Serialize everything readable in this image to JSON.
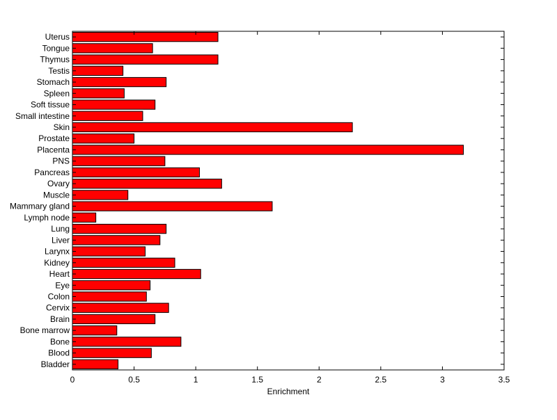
{
  "chart_data": {
    "type": "bar",
    "orientation": "horizontal",
    "categories": [
      "Bladder",
      "Blood",
      "Bone",
      "Bone marrow",
      "Brain",
      "Cervix",
      "Colon",
      "Eye",
      "Heart",
      "Kidney",
      "Larynx",
      "Liver",
      "Lung",
      "Lymph node",
      "Mammary gland",
      "Muscle",
      "Ovary",
      "Pancreas",
      "PNS",
      "Placenta",
      "Prostate",
      "Skin",
      "Small intestine",
      "Soft tissue",
      "Spleen",
      "Stomach",
      "Testis",
      "Thymus",
      "Tongue",
      "Uterus"
    ],
    "values": [
      0.37,
      0.64,
      0.88,
      0.36,
      0.67,
      0.78,
      0.6,
      0.63,
      1.04,
      0.83,
      0.59,
      0.71,
      0.76,
      0.19,
      1.62,
      0.45,
      1.21,
      1.03,
      0.75,
      3.17,
      0.5,
      2.27,
      0.57,
      0.67,
      0.42,
      0.76,
      0.41,
      1.18,
      0.65,
      1.18
    ],
    "title": "",
    "xlabel": "Enrichment",
    "ylabel": "",
    "xlim": [
      0,
      3.5
    ],
    "xticks": [
      0,
      0.5,
      1,
      1.5,
      2,
      2.5,
      3,
      3.5
    ],
    "xtick_labels": [
      "0",
      "0.5",
      "1",
      "1.5",
      "2",
      "2.5",
      "3",
      "3.5"
    ],
    "bar_color": "#ff0000",
    "edge_color": "#000000",
    "grid": false,
    "legend": "none"
  }
}
